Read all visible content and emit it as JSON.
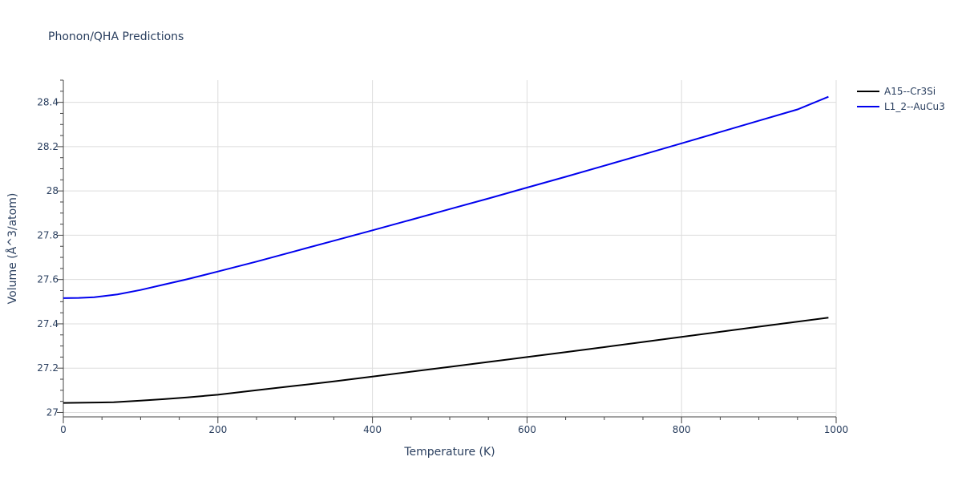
{
  "chart_data": {
    "type": "line",
    "title": "Phonon/QHA Predictions",
    "xlabel": "Temperature (K)",
    "ylabel": "Volume (Å^3/atom)",
    "xlim": [
      0,
      1000
    ],
    "ylim": [
      26.98,
      28.5
    ],
    "x_ticks": [
      0,
      200,
      400,
      600,
      800,
      1000
    ],
    "x_tick_labels": [
      "0",
      "200",
      "400",
      "600",
      "800",
      "1000"
    ],
    "y_ticks": [
      27.0,
      27.2,
      27.4,
      27.6,
      27.8,
      28.0,
      28.2,
      28.4
    ],
    "y_tick_labels": [
      "27",
      "27.2",
      "27.4",
      "27.6",
      "27.8",
      "28",
      "28.2",
      "28.4"
    ],
    "grid": true,
    "legend_position": "top-right",
    "series": [
      {
        "name": "A15--Cr3Si",
        "color": "#000000",
        "x": [
          0,
          30,
          65,
          100,
          130,
          160,
          200,
          250,
          300,
          350,
          400,
          450,
          500,
          550,
          600,
          650,
          700,
          750,
          800,
          850,
          900,
          950,
          990
        ],
        "y": [
          27.043,
          27.044,
          27.046,
          27.053,
          27.06,
          27.068,
          27.08,
          27.1,
          27.12,
          27.14,
          27.162,
          27.184,
          27.206,
          27.228,
          27.25,
          27.272,
          27.295,
          27.318,
          27.341,
          27.364,
          27.387,
          27.41,
          27.428
        ]
      },
      {
        "name": "L1_2--AuCu3",
        "color": "#0000ee",
        "x": [
          0,
          20,
          40,
          70,
          100,
          130,
          160,
          200,
          250,
          300,
          350,
          400,
          450,
          500,
          550,
          600,
          650,
          700,
          750,
          800,
          850,
          900,
          950,
          990
        ],
        "y": [
          27.516,
          27.517,
          27.52,
          27.533,
          27.553,
          27.577,
          27.601,
          27.636,
          27.681,
          27.728,
          27.775,
          27.822,
          27.87,
          27.918,
          27.966,
          28.015,
          28.064,
          28.114,
          28.164,
          28.215,
          28.266,
          28.317,
          28.368,
          28.425
        ]
      }
    ]
  }
}
